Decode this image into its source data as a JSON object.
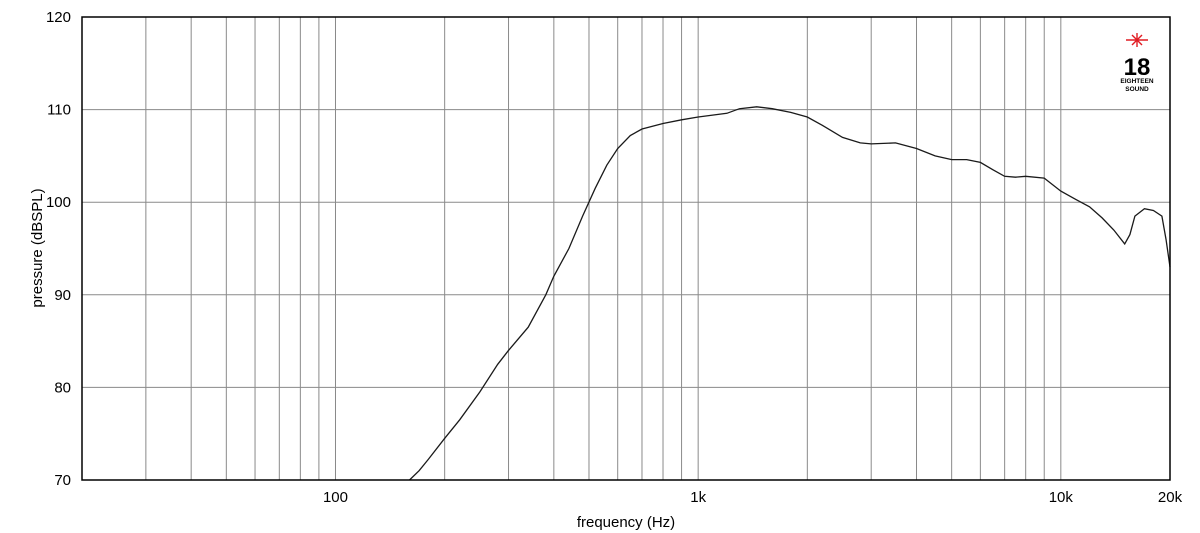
{
  "chart_data": {
    "type": "line",
    "title": "",
    "xlabel": "frequency (Hz)",
    "ylabel": "pressure (dBSPL)",
    "xscale": "log",
    "xlim": [
      20,
      20000
    ],
    "ylim": [
      70,
      120
    ],
    "grid": true,
    "legend": "none",
    "x_tick_labels": [
      {
        "value": 100,
        "label": "100"
      },
      {
        "value": 1000,
        "label": "1k"
      },
      {
        "value": 10000,
        "label": "10k"
      },
      {
        "value": 20000,
        "label": "20k"
      }
    ],
    "y_tick_labels": [
      {
        "value": 70,
        "label": "70"
      },
      {
        "value": 80,
        "label": "80"
      },
      {
        "value": 90,
        "label": "90"
      },
      {
        "value": 100,
        "label": "100"
      },
      {
        "value": 110,
        "label": "110"
      },
      {
        "value": 120,
        "label": "120"
      }
    ],
    "x_minor_grid": [
      30,
      40,
      50,
      60,
      70,
      80,
      90,
      200,
      300,
      400,
      500,
      600,
      700,
      800,
      900,
      2000,
      3000,
      4000,
      5000,
      6000,
      7000,
      8000,
      9000
    ],
    "series": [
      {
        "color": "#1a1a1a",
        "points": [
          [
            160,
            70
          ],
          [
            170,
            71
          ],
          [
            180,
            72.2
          ],
          [
            200,
            74.5
          ],
          [
            220,
            76.5
          ],
          [
            250,
            79.5
          ],
          [
            280,
            82.5
          ],
          [
            300,
            84
          ],
          [
            340,
            86.5
          ],
          [
            380,
            90
          ],
          [
            400,
            92
          ],
          [
            440,
            95
          ],
          [
            480,
            98.5
          ],
          [
            520,
            101.5
          ],
          [
            560,
            104
          ],
          [
            600,
            105.8
          ],
          [
            650,
            107.2
          ],
          [
            700,
            107.9
          ],
          [
            800,
            108.5
          ],
          [
            900,
            108.9
          ],
          [
            1000,
            109.2
          ],
          [
            1200,
            109.6
          ],
          [
            1300,
            110.1
          ],
          [
            1450,
            110.3
          ],
          [
            1600,
            110.1
          ],
          [
            1800,
            109.7
          ],
          [
            2000,
            109.2
          ],
          [
            2200,
            108.3
          ],
          [
            2500,
            107
          ],
          [
            2800,
            106.4
          ],
          [
            3000,
            106.3
          ],
          [
            3500,
            106.4
          ],
          [
            4000,
            105.8
          ],
          [
            4500,
            105
          ],
          [
            5000,
            104.6
          ],
          [
            5500,
            104.6
          ],
          [
            6000,
            104.3
          ],
          [
            6500,
            103.5
          ],
          [
            7000,
            102.8
          ],
          [
            7500,
            102.7
          ],
          [
            8000,
            102.8
          ],
          [
            9000,
            102.6
          ],
          [
            10000,
            101.2
          ],
          [
            11000,
            100.3
          ],
          [
            12000,
            99.5
          ],
          [
            13000,
            98.3
          ],
          [
            14000,
            97
          ],
          [
            15000,
            95.5
          ],
          [
            15500,
            96.5
          ],
          [
            16000,
            98.5
          ],
          [
            17000,
            99.3
          ],
          [
            18000,
            99.1
          ],
          [
            19000,
            98.5
          ],
          [
            19500,
            96
          ],
          [
            20000,
            93
          ]
        ]
      }
    ]
  },
  "logo": {
    "text": "18",
    "subtext_top": "EIGHTEEN",
    "subtext_bottom": "SOUND",
    "accent_color": "#e11b22"
  }
}
